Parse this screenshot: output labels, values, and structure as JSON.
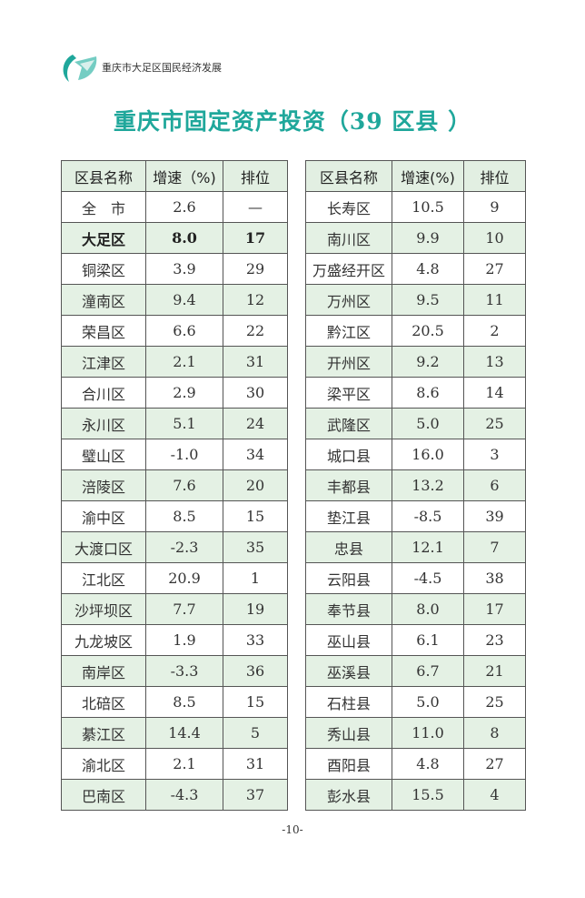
{
  "header": {
    "brand": "重庆市大足区国民经济发展",
    "logo_color": "#1fa79b"
  },
  "title": "重庆市固定资产投资（39 区县 ）",
  "columns": [
    "区县名称",
    "增速（%)",
    "排位"
  ],
  "columns_right": [
    "区县名称",
    "增速(%)",
    "排位"
  ],
  "left_rows": [
    [
      "全　市",
      "2.6",
      "—"
    ],
    [
      "大足区",
      "8.0",
      "17"
    ],
    [
      "铜梁区",
      "3.9",
      "29"
    ],
    [
      "潼南区",
      "9.4",
      "12"
    ],
    [
      "荣昌区",
      "6.6",
      "22"
    ],
    [
      "江津区",
      "2.1",
      "31"
    ],
    [
      "合川区",
      "2.9",
      "30"
    ],
    [
      "永川区",
      "5.1",
      "24"
    ],
    [
      "璧山区",
      "-1.0",
      "34"
    ],
    [
      "涪陵区",
      "7.6",
      "20"
    ],
    [
      "渝中区",
      "8.5",
      "15"
    ],
    [
      "大渡口区",
      "-2.3",
      "35"
    ],
    [
      "江北区",
      "20.9",
      "1"
    ],
    [
      "沙坪坝区",
      "7.7",
      "19"
    ],
    [
      "九龙坡区",
      "1.9",
      "33"
    ],
    [
      "南岸区",
      "-3.3",
      "36"
    ],
    [
      "北碚区",
      "8.5",
      "15"
    ],
    [
      "綦江区",
      "14.4",
      "5"
    ],
    [
      "渝北区",
      "2.1",
      "31"
    ],
    [
      "巴南区",
      "-4.3",
      "37"
    ]
  ],
  "right_rows": [
    [
      "长寿区",
      "10.5",
      "9"
    ],
    [
      "南川区",
      "9.9",
      "10"
    ],
    [
      "万盛经开区",
      "4.8",
      "27"
    ],
    [
      "万州区",
      "9.5",
      "11"
    ],
    [
      "黔江区",
      "20.5",
      "2"
    ],
    [
      "开州区",
      "9.2",
      "13"
    ],
    [
      "梁平区",
      "8.6",
      "14"
    ],
    [
      "武隆区",
      "5.0",
      "25"
    ],
    [
      "城口县",
      "16.0",
      "3"
    ],
    [
      "丰都县",
      "13.2",
      "6"
    ],
    [
      "垫江县",
      "-8.5",
      "39"
    ],
    [
      "忠县",
      "12.1",
      "7"
    ],
    [
      "云阳县",
      "-4.5",
      "38"
    ],
    [
      "奉节县",
      "8.0",
      "17"
    ],
    [
      "巫山县",
      "6.1",
      "23"
    ],
    [
      "巫溪县",
      "6.7",
      "21"
    ],
    [
      "石柱县",
      "5.0",
      "25"
    ],
    [
      "秀山县",
      "11.0",
      "8"
    ],
    [
      "酉阳县",
      "4.8",
      "27"
    ],
    [
      "彭水县",
      "15.5",
      "4"
    ]
  ],
  "highlight_row": "大足区",
  "row_shade_color": "#e4f1e4",
  "page_number": "-10-"
}
